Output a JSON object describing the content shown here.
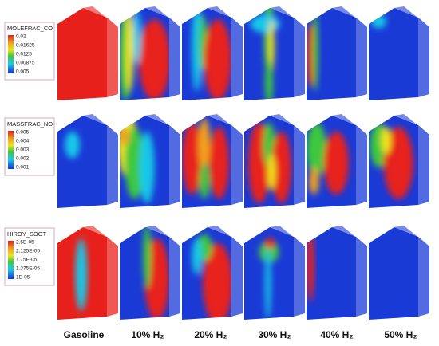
{
  "legends": [
    {
      "title": "MOLEFRAC_CO",
      "ticks": [
        "0.02",
        "0.01625",
        "0.0125",
        "0.00875",
        "0.005"
      ]
    },
    {
      "title": "MASSFRAC_NO",
      "ticks": [
        "0.005",
        "0.004",
        "0.003",
        "0.002",
        "0.001"
      ]
    },
    {
      "title": "HIROY_SOOT",
      "ticks": [
        "2.5E-05",
        "2.125E-05",
        "1.75E-05",
        "1.375E-05",
        "1E-05"
      ]
    }
  ],
  "columns": [
    "Gasoline",
    "10% H₂",
    "20% H₂",
    "30% H₂",
    "40% H₂",
    "50% H₂"
  ]
}
